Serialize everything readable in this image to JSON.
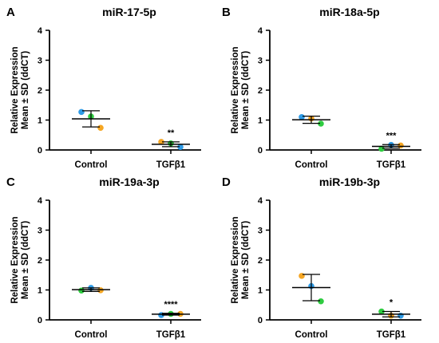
{
  "colors": {
    "blue": "#2E9BE6",
    "orange": "#F5A623",
    "green": "#2ECC40",
    "line": "#000000"
  },
  "chart_data": [
    {
      "type": "scatter",
      "panel": "A",
      "title": "miR-17-5p",
      "ylabel": [
        "Relative Expression",
        "Mean ± SD (ddCT)"
      ],
      "ylim": [
        0,
        4
      ],
      "yticks": [
        "0",
        "1",
        "2",
        "3",
        "4"
      ],
      "categories": [
        "Control",
        "TGFβ1"
      ],
      "groups": [
        {
          "category": "Control",
          "mean": 1.04,
          "sd": 0.27,
          "points": [
            {
              "color": "blue",
              "y": 1.27
            },
            {
              "color": "green",
              "y": 1.12
            },
            {
              "color": "orange",
              "y": 0.74
            }
          ]
        },
        {
          "category": "TGFβ1",
          "mean": 0.19,
          "sd": 0.08,
          "points": [
            {
              "color": "orange",
              "y": 0.27
            },
            {
              "color": "green",
              "y": 0.22
            },
            {
              "color": "blue",
              "y": 0.1
            }
          ]
        }
      ],
      "significance": "**"
    },
    {
      "type": "scatter",
      "panel": "B",
      "title": "miR-18a-5p",
      "ylabel": [
        "Relative Expression",
        "Mean ± SD (ddCT)"
      ],
      "ylim": [
        0,
        4
      ],
      "yticks": [
        "0",
        "1",
        "2",
        "3",
        "4"
      ],
      "categories": [
        "Control",
        "TGFβ1"
      ],
      "groups": [
        {
          "category": "Control",
          "mean": 1.01,
          "sd": 0.12,
          "points": [
            {
              "color": "blue",
              "y": 1.1
            },
            {
              "color": "orange",
              "y": 1.05
            },
            {
              "color": "green",
              "y": 0.88
            }
          ]
        },
        {
          "category": "TGFβ1",
          "mean": 0.12,
          "sd": 0.06,
          "points": [
            {
              "color": "green",
              "y": 0.04
            },
            {
              "color": "blue",
              "y": 0.17
            },
            {
              "color": "orange",
              "y": 0.15
            }
          ]
        }
      ],
      "significance": "***"
    },
    {
      "type": "scatter",
      "panel": "C",
      "title": "miR-19a-3p",
      "ylabel": [
        "Relative Expression",
        "Mean ± SD (ddCT)"
      ],
      "ylim": [
        0,
        4
      ],
      "yticks": [
        "0",
        "1",
        "2",
        "3",
        "4"
      ],
      "categories": [
        "Control",
        "TGFβ1"
      ],
      "groups": [
        {
          "category": "Control",
          "mean": 1.01,
          "sd": 0.06,
          "points": [
            {
              "color": "green",
              "y": 0.98
            },
            {
              "color": "blue",
              "y": 1.07
            },
            {
              "color": "orange",
              "y": 0.99
            }
          ]
        },
        {
          "category": "TGFβ1",
          "mean": 0.19,
          "sd": 0.03,
          "points": [
            {
              "color": "blue",
              "y": 0.16
            },
            {
              "color": "green",
              "y": 0.2
            },
            {
              "color": "orange",
              "y": 0.2
            }
          ]
        }
      ],
      "significance": "****"
    },
    {
      "type": "scatter",
      "panel": "D",
      "title": "miR-19b-3p",
      "ylabel": [
        "Relative Expression",
        "Mean ± SD (ddCT)"
      ],
      "ylim": [
        0,
        4
      ],
      "yticks": [
        "0",
        "1",
        "2",
        "3",
        "4"
      ],
      "categories": [
        "Control",
        "TGFβ1"
      ],
      "groups": [
        {
          "category": "Control",
          "mean": 1.08,
          "sd": 0.44,
          "points": [
            {
              "color": "orange",
              "y": 1.47
            },
            {
              "color": "blue",
              "y": 1.13
            },
            {
              "color": "green",
              "y": 0.62
            }
          ]
        },
        {
          "category": "TGFβ1",
          "mean": 0.19,
          "sd": 0.09,
          "points": [
            {
              "color": "green",
              "y": 0.28
            },
            {
              "color": "orange",
              "y": 0.14
            },
            {
              "color": "blue",
              "y": 0.14
            }
          ]
        }
      ],
      "significance": "*"
    }
  ]
}
